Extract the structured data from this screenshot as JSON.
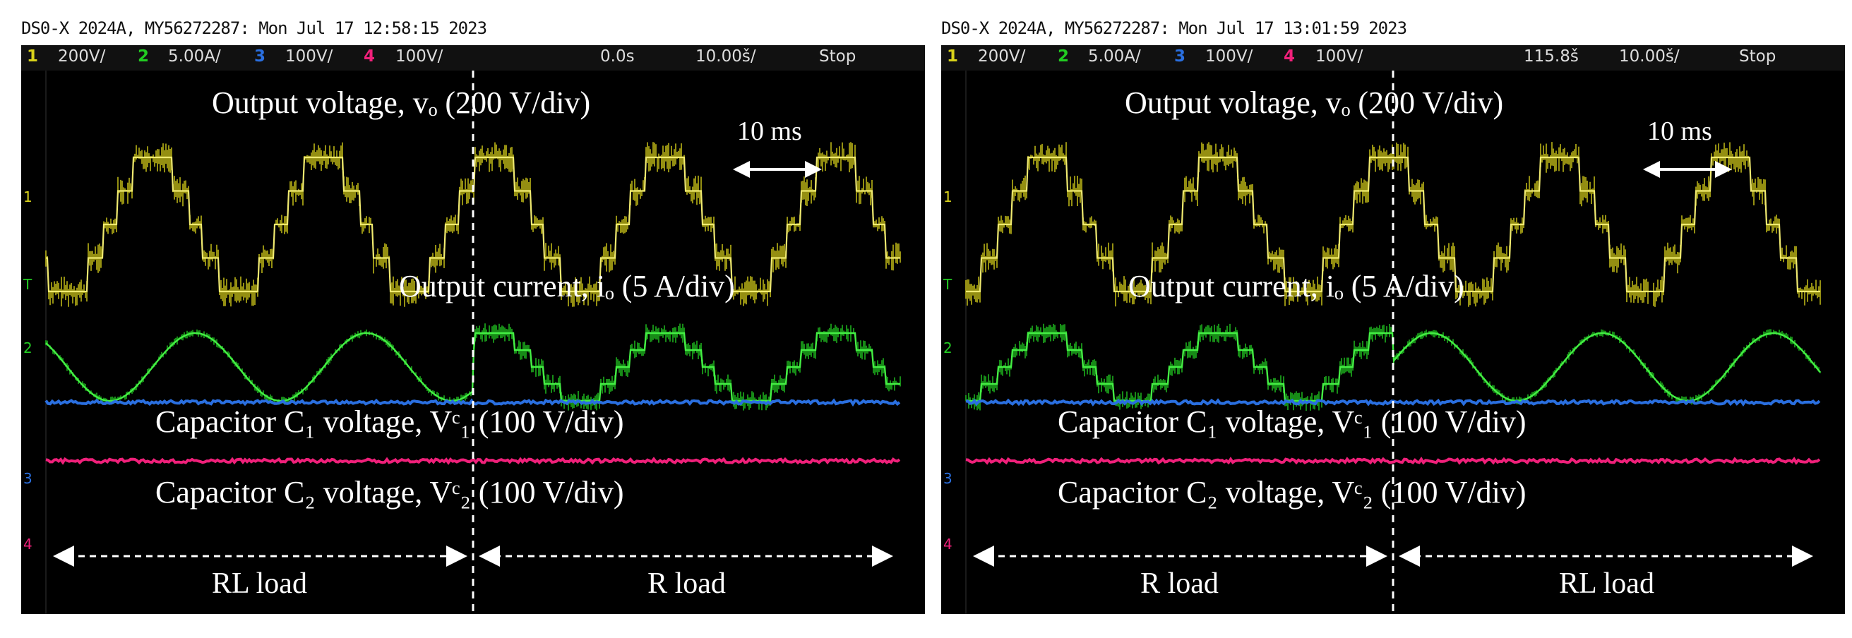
{
  "panels": [
    {
      "header": "DS0-X 2024A, MY56272287: Mon Jul 17 12:58:15 2023",
      "status": {
        "ch1": "200V/",
        "ch2": "5.00A/",
        "ch3": "100V/",
        "ch4": "100V/",
        "time_offset": "0.0s",
        "time_div": "10.00š/",
        "run": "Stop"
      },
      "marker_labels": [
        "1",
        "T",
        "2",
        "3",
        "4"
      ],
      "annotations": {
        "vo": "Output voltage, vₒ (200 V/div)",
        "io": "Output current, iₒ (5 A/div)",
        "vc1": "Capacitor C₁ voltage, Vᶜ₁ (100 V/div)",
        "vc2": "Capacitor C₂ voltage, Vᶜ₂ (100 V/div)",
        "time_scale": "10 ms",
        "left_load": "RL load",
        "right_load": "R load"
      }
    },
    {
      "header": "DS0-X 2024A, MY56272287: Mon Jul 17 13:01:59 2023",
      "status": {
        "ch1": "200V/",
        "ch2": "5.00A/",
        "ch3": "100V/",
        "ch4": "100V/",
        "time_offset": "115.8š",
        "time_div": "10.00š/",
        "run": "Stop"
      },
      "marker_labels": [
        "1",
        "T",
        "2",
        "3",
        "4"
      ],
      "annotations": {
        "vo": "Output voltage, vₒ (200 V/div)",
        "io": "Output current, iₒ (5 A/div)",
        "vc1": "Capacitor C₁ voltage, Vᶜ₁ (100 V/div)",
        "vc2": "Capacitor C₂ voltage, Vᶜ₂ (100 V/div)",
        "time_scale": "10 ms",
        "left_load": "R load",
        "right_load": "RL load"
      }
    }
  ],
  "colors": {
    "ch1": "#d9d21a",
    "ch2": "#22cc22",
    "ch3": "#2a6fe0",
    "ch4": "#f0207a",
    "background": "#000000",
    "grid": "#444444",
    "annotation": "#ffffff"
  },
  "chart_data": [
    {
      "type": "line",
      "x_unit": "ms",
      "x_div": 10,
      "x_range": [
        -50,
        50
      ],
      "load_change_at": 0,
      "series": [
        {
          "name": "1",
          "shape": "stepped five-level",
          "period_ms": 20,
          "amplitude_div": 2.3,
          "offset_div": 2.9
        },
        {
          "name": "2",
          "segments": [
            {
              "x": [
                -50,
                0
              ],
              "shape": "sinusoid",
              "amplitude_div": 0.55
            },
            {
              "x": [
                0,
                50
              ],
              "shape": "stepped",
              "amplitude_div": 0.55
            }
          ],
          "offset_div": 0.6
        },
        {
          "name": "3",
          "shape": "dc",
          "offset_div": 0.1
        },
        {
          "name": "4",
          "shape": "dc",
          "offset_div": -0.7
        }
      ]
    },
    {
      "type": "line",
      "x_unit": "ms",
      "x_div": 10,
      "x_range": [
        -50,
        50
      ],
      "load_change_at": 0,
      "series": [
        {
          "name": "1",
          "shape": "stepped five-level",
          "period_ms": 20,
          "amplitude_div": 2.3,
          "offset_div": 2.9
        },
        {
          "name": "2",
          "segments": [
            {
              "x": [
                -50,
                0
              ],
              "shape": "stepped",
              "amplitude_div": 0.55
            },
            {
              "x": [
                0,
                50
              ],
              "shape": "sinusoid",
              "amplitude_div": 0.55
            }
          ],
          "offset_div": 0.6
        },
        {
          "name": "3",
          "shape": "dc",
          "offset_div": 0.1
        },
        {
          "name": "4",
          "shape": "dc",
          "offset_div": -0.7
        }
      ]
    }
  ]
}
